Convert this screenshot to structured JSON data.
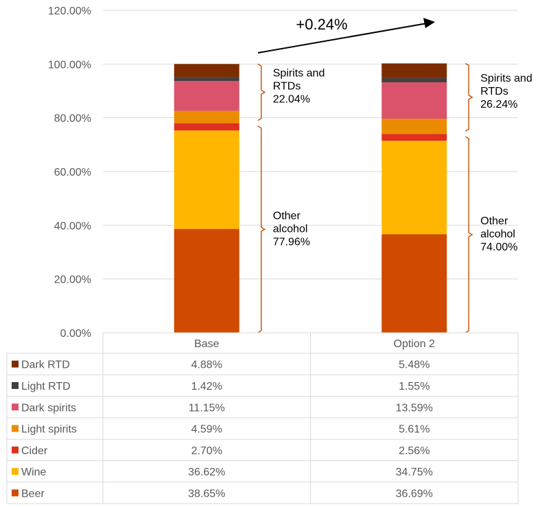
{
  "chart_data": {
    "type": "stacked-bar",
    "title": "",
    "xlabel": "",
    "ylabel": "",
    "ylim": [
      0,
      120
    ],
    "ytick_step": 20,
    "ytick_labels": [
      "0.00%",
      "20.00%",
      "40.00%",
      "60.00%",
      "80.00%",
      "100.00%",
      "120.00%"
    ],
    "grid": true,
    "legend": "data-table",
    "categories": [
      "Base",
      "Option 2"
    ],
    "series": [
      {
        "name": "Beer",
        "color": "#d04a02",
        "values": [
          38.65,
          36.69
        ],
        "labels": [
          "38.65%",
          "36.69%"
        ]
      },
      {
        "name": "Wine",
        "color": "#ffb600",
        "values": [
          36.62,
          34.75
        ],
        "labels": [
          "36.62%",
          "34.75%"
        ]
      },
      {
        "name": "Cider",
        "color": "#e0301e",
        "values": [
          2.7,
          2.56
        ],
        "labels": [
          "2.70%",
          "2.56%"
        ]
      },
      {
        "name": "Light spirits",
        "color": "#eb8c00",
        "values": [
          4.59,
          5.61
        ],
        "labels": [
          "4.59%",
          "5.61%"
        ]
      },
      {
        "name": "Dark spirits",
        "color": "#db536a",
        "values": [
          11.15,
          13.59
        ],
        "labels": [
          "11.15%",
          "13.59%"
        ]
      },
      {
        "name": "Light RTD",
        "color": "#404041",
        "values": [
          1.42,
          1.55
        ],
        "labels": [
          "1.42%",
          "1.55%"
        ]
      },
      {
        "name": "Dark RTD",
        "color": "#7d2c00",
        "values": [
          4.88,
          5.48
        ],
        "labels": [
          "4.88%",
          "5.48%"
        ]
      }
    ],
    "annotations": {
      "arrow_label": "+0.24%",
      "groups": [
        {
          "spirits": {
            "lines": [
              "Spirits and",
              "RTDs",
              "22.04%"
            ]
          },
          "other": {
            "lines": [
              "Other",
              "alcohol",
              "77.96%"
            ]
          }
        },
        {
          "spirits": {
            "lines": [
              "Spirits and",
              "RTDs",
              "26.24%"
            ]
          },
          "other": {
            "lines": [
              "Other",
              "alcohol",
              "74.00%"
            ]
          }
        }
      ]
    },
    "bracket_color": "#c55a11"
  }
}
